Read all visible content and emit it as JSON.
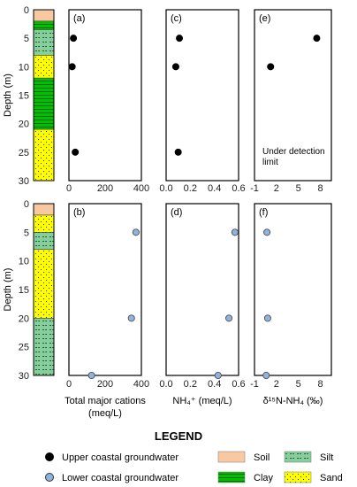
{
  "chart_data": [
    {
      "type": "scatter",
      "panel": "(a)",
      "ylabel": "Depth (m)",
      "xticks": [
        "0",
        "200",
        "400"
      ],
      "xlim": [
        0,
        400
      ],
      "ylim": [
        30,
        0
      ],
      "yticks": [
        "0",
        "5",
        "10",
        "15",
        "20",
        "25",
        "30"
      ],
      "series": [
        {
          "name": "Upper coastal groundwater",
          "x": [
            25,
            18,
            35
          ],
          "y": [
            5,
            10,
            25
          ]
        }
      ]
    },
    {
      "type": "scatter",
      "panel": "(c)",
      "xticks": [
        "0.0",
        "0.2",
        "0.4",
        "0.6"
      ],
      "xlim": [
        0,
        0.6
      ],
      "ylim": [
        30,
        0
      ],
      "series": [
        {
          "name": "Upper coastal groundwater",
          "x": [
            0.11,
            0.08,
            0.1
          ],
          "y": [
            5,
            10,
            25
          ]
        }
      ]
    },
    {
      "type": "scatter",
      "panel": "(e)",
      "xticks": [
        "-1",
        "2",
        "5",
        "8"
      ],
      "xlim": [
        -1,
        9.5
      ],
      "ylim": [
        30,
        0
      ],
      "annotation": [
        "Under detection",
        "limit"
      ],
      "series": [
        {
          "name": "Upper coastal groundwater",
          "x": [
            7.5,
            1.2
          ],
          "y": [
            5,
            10
          ]
        }
      ]
    },
    {
      "type": "scatter",
      "panel": "(b)",
      "ylabel": "Depth (m)",
      "xlabel": [
        "Total major cations",
        "(meq/L)"
      ],
      "xticks": [
        "0",
        "200",
        "400"
      ],
      "xlim": [
        0,
        400
      ],
      "ylim": [
        30,
        0
      ],
      "yticks": [
        "0",
        "5",
        "10",
        "15",
        "20",
        "25",
        "30"
      ],
      "series": [
        {
          "name": "Lower coastal groundwater",
          "x": [
            370,
            345,
            125
          ],
          "y": [
            5,
            20,
            30
          ]
        }
      ]
    },
    {
      "type": "scatter",
      "panel": "(d)",
      "xlabel": [
        "NH₄⁺ (meq/L)"
      ],
      "xticks": [
        "0.0",
        "0.2",
        "0.4",
        "0.6"
      ],
      "xlim": [
        0,
        0.6
      ],
      "ylim": [
        30,
        0
      ],
      "series": [
        {
          "name": "Lower coastal groundwater",
          "x": [
            0.57,
            0.52,
            0.43
          ],
          "y": [
            5,
            20,
            30
          ]
        }
      ]
    },
    {
      "type": "scatter",
      "panel": "(f)",
      "xlabel": [
        "δ¹⁵N-NH₄ (‰)"
      ],
      "xticks": [
        "-1",
        "2",
        "5",
        "8"
      ],
      "xlim": [
        -1,
        9.5
      ],
      "ylim": [
        30,
        0
      ],
      "series": [
        {
          "name": "Lower coastal groundwater",
          "x": [
            0.7,
            0.8,
            0.6
          ],
          "y": [
            5,
            20,
            30
          ]
        }
      ]
    }
  ],
  "lithology": {
    "upper": [
      {
        "type": "Soil",
        "from": 0,
        "to": 2
      },
      {
        "type": "Clay",
        "from": 2,
        "to": 3.5
      },
      {
        "type": "Silt",
        "from": 3.5,
        "to": 8
      },
      {
        "type": "Sand",
        "from": 8,
        "to": 12
      },
      {
        "type": "Clay",
        "from": 12,
        "to": 21
      },
      {
        "type": "Sand",
        "from": 21,
        "to": 30
      }
    ],
    "lower": [
      {
        "type": "Soil",
        "from": 0,
        "to": 2
      },
      {
        "type": "Sand",
        "from": 2,
        "to": 5
      },
      {
        "type": "Silt",
        "from": 5,
        "to": 8
      },
      {
        "type": "Sand",
        "from": 8,
        "to": 20
      },
      {
        "type": "Silt",
        "from": 20,
        "to": 30
      }
    ]
  },
  "legend": {
    "title": "LEGEND",
    "upper_label": "Upper coastal groundwater",
    "lower_label": "Lower coastal groundwater",
    "soil": "Soil",
    "silt": "Silt",
    "clay": "Clay",
    "sand": "Sand"
  },
  "colors": {
    "upper_marker": "#000000",
    "lower_marker": "#8fb3de",
    "soil": "#f8c8a0",
    "clay": "#00c000",
    "silt": "#86cf9d",
    "sand": "#ffff00"
  }
}
